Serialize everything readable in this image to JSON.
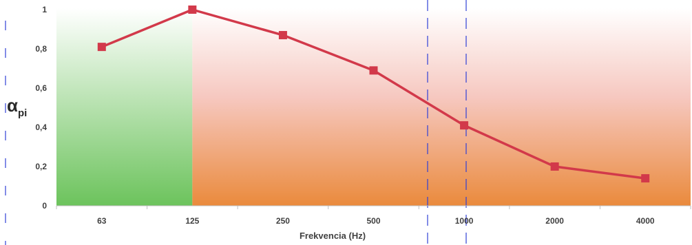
{
  "chart_data": {
    "type": "line",
    "categories": [
      "63",
      "125",
      "250",
      "500",
      "1000",
      "2000",
      "4000"
    ],
    "series": [
      {
        "values": [
          0.81,
          1.0,
          0.87,
          0.69,
          0.41,
          0.2,
          0.14
        ],
        "color": "#d2394a"
      }
    ],
    "xlabel": "Frekvencia (Hz)",
    "ylabel": {
      "main": "α",
      "sub": "pi"
    },
    "ylim": [
      0,
      1
    ],
    "yticks": [
      "0",
      "0,2",
      "0,4",
      "0,6",
      "0,8",
      "1"
    ],
    "grid": false,
    "regions": [
      {
        "from": "63",
        "to": "125",
        "color_top": "#ffffff",
        "color_bottom": "#6cc35c"
      },
      {
        "from": "125",
        "to": "4000",
        "color_top": "#ffffff",
        "color_bottom": "#ea8a3c"
      }
    ],
    "markers": "square"
  }
}
